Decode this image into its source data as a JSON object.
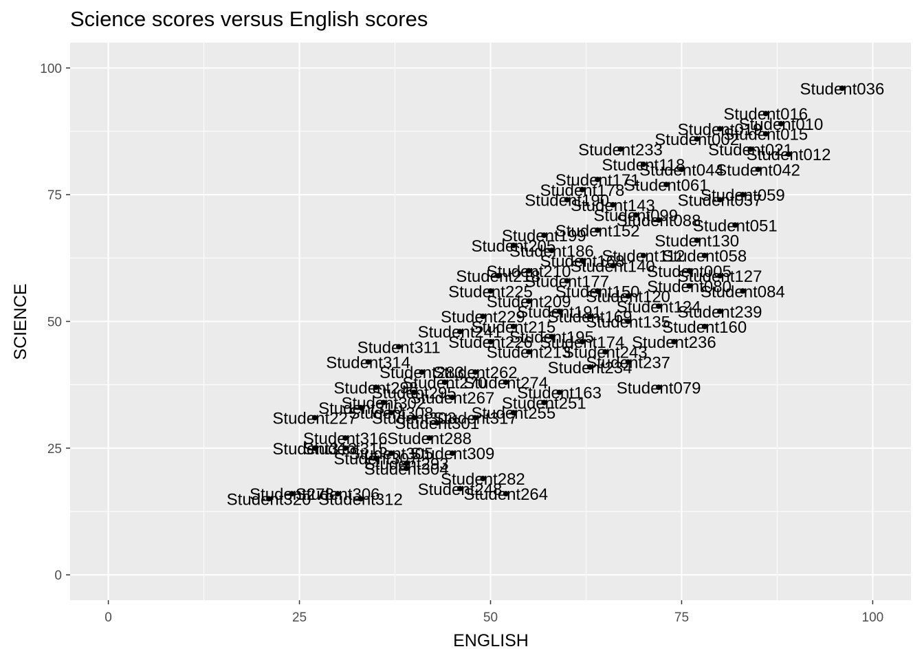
{
  "chart_data": {
    "type": "scatter",
    "title": "Science scores versus English scores",
    "xlabel": "ENGLISH",
    "ylabel": "SCIENCE",
    "xlim": [
      -5,
      105
    ],
    "ylim": [
      -5,
      105
    ],
    "xticks": [
      "0",
      "25",
      "50",
      "75",
      "100"
    ],
    "yticks": [
      "0",
      "25",
      "50",
      "75",
      "100"
    ],
    "grid": true,
    "points": [
      {
        "x": 96,
        "y": 96,
        "label": "Student036"
      },
      {
        "x": 88,
        "y": 89,
        "label": "Student010"
      },
      {
        "x": 86,
        "y": 91,
        "label": "Student016"
      },
      {
        "x": 86,
        "y": 87,
        "label": "Student015"
      },
      {
        "x": 89,
        "y": 83,
        "label": "Student012"
      },
      {
        "x": 85,
        "y": 80,
        "label": "Student042"
      },
      {
        "x": 83,
        "y": 75,
        "label": "Student059"
      },
      {
        "x": 80,
        "y": 74,
        "label": "Student037"
      },
      {
        "x": 82,
        "y": 69,
        "label": "Student051"
      },
      {
        "x": 77,
        "y": 66,
        "label": "Student130"
      },
      {
        "x": 78,
        "y": 63,
        "label": "Student058"
      },
      {
        "x": 76,
        "y": 60,
        "label": "Student005"
      },
      {
        "x": 80,
        "y": 59,
        "label": "Student127"
      },
      {
        "x": 76,
        "y": 57,
        "label": "Student080"
      },
      {
        "x": 83,
        "y": 56,
        "label": "Student084"
      },
      {
        "x": 72,
        "y": 53,
        "label": "Student124"
      },
      {
        "x": 80,
        "y": 52,
        "label": "Student239"
      },
      {
        "x": 78,
        "y": 49,
        "label": "Student160"
      },
      {
        "x": 74,
        "y": 46,
        "label": "Student236"
      },
      {
        "x": 68,
        "y": 42,
        "label": "Student237"
      },
      {
        "x": 63,
        "y": 41,
        "label": "Student234"
      },
      {
        "x": 72,
        "y": 37,
        "label": "Student079"
      },
      {
        "x": 59,
        "y": 36,
        "label": "Student163"
      },
      {
        "x": 57,
        "y": 34,
        "label": "Student251"
      },
      {
        "x": 53,
        "y": 32,
        "label": "Student255"
      },
      {
        "x": 38,
        "y": 45,
        "label": "Student311"
      },
      {
        "x": 34,
        "y": 42,
        "label": "Student314"
      },
      {
        "x": 27,
        "y": 31,
        "label": "Student227"
      },
      {
        "x": 43,
        "y": 30,
        "label": "Student301"
      },
      {
        "x": 48,
        "y": 31,
        "label": "Student317"
      },
      {
        "x": 42,
        "y": 27,
        "label": "Student288"
      },
      {
        "x": 31,
        "y": 27,
        "label": "Student316"
      },
      {
        "x": 27,
        "y": 25,
        "label": "Student313"
      },
      {
        "x": 45,
        "y": 24,
        "label": "Student309"
      },
      {
        "x": 39,
        "y": 22,
        "label": "Student293"
      },
      {
        "x": 35,
        "y": 23,
        "label": "Student307"
      },
      {
        "x": 39,
        "y": 21,
        "label": "Student304"
      },
      {
        "x": 49,
        "y": 19,
        "label": "Student282"
      },
      {
        "x": 46,
        "y": 17,
        "label": "Student248"
      },
      {
        "x": 52,
        "y": 16,
        "label": "Student264"
      },
      {
        "x": 30,
        "y": 16,
        "label": "Student306"
      },
      {
        "x": 24,
        "y": 16,
        "label": "Student278"
      },
      {
        "x": 21,
        "y": 15,
        "label": "Student320"
      },
      {
        "x": 33,
        "y": 15,
        "label": "Student312"
      },
      {
        "x": 67,
        "y": 84,
        "label": "Student233"
      },
      {
        "x": 70,
        "y": 81,
        "label": "Student118"
      },
      {
        "x": 77,
        "y": 86,
        "label": "Student002"
      },
      {
        "x": 80,
        "y": 88,
        "label": "Student019"
      },
      {
        "x": 84,
        "y": 84,
        "label": "Student021"
      },
      {
        "x": 75,
        "y": 80,
        "label": "Student044"
      },
      {
        "x": 73,
        "y": 77,
        "label": "Student061"
      },
      {
        "x": 64,
        "y": 78,
        "label": "Student171"
      },
      {
        "x": 62,
        "y": 76,
        "label": "Student178"
      },
      {
        "x": 60,
        "y": 74,
        "label": "Student190"
      },
      {
        "x": 66,
        "y": 73,
        "label": "Student143"
      },
      {
        "x": 69,
        "y": 71,
        "label": "Student099"
      },
      {
        "x": 72,
        "y": 70,
        "label": "Student088"
      },
      {
        "x": 64,
        "y": 68,
        "label": "Student152"
      },
      {
        "x": 57,
        "y": 67,
        "label": "Student199"
      },
      {
        "x": 53,
        "y": 65,
        "label": "Student205"
      },
      {
        "x": 58,
        "y": 64,
        "label": "Student186"
      },
      {
        "x": 62,
        "y": 62,
        "label": "Student168"
      },
      {
        "x": 66,
        "y": 61,
        "label": "Student140"
      },
      {
        "x": 70,
        "y": 63,
        "label": "Student112"
      },
      {
        "x": 55,
        "y": 60,
        "label": "Student210"
      },
      {
        "x": 51,
        "y": 59,
        "label": "Student218"
      },
      {
        "x": 60,
        "y": 58,
        "label": "Student177"
      },
      {
        "x": 64,
        "y": 56,
        "label": "Student150"
      },
      {
        "x": 68,
        "y": 55,
        "label": "Student120"
      },
      {
        "x": 50,
        "y": 56,
        "label": "Student225"
      },
      {
        "x": 55,
        "y": 54,
        "label": "Student209"
      },
      {
        "x": 59,
        "y": 52,
        "label": "Student191"
      },
      {
        "x": 63,
        "y": 51,
        "label": "Student169"
      },
      {
        "x": 68,
        "y": 50,
        "label": "Student135"
      },
      {
        "x": 49,
        "y": 51,
        "label": "Student229"
      },
      {
        "x": 53,
        "y": 49,
        "label": "Student215"
      },
      {
        "x": 58,
        "y": 47,
        "label": "Student195"
      },
      {
        "x": 62,
        "y": 46,
        "label": "Student174"
      },
      {
        "x": 46,
        "y": 48,
        "label": "Student241"
      },
      {
        "x": 50,
        "y": 46,
        "label": "Student226"
      },
      {
        "x": 55,
        "y": 44,
        "label": "Student213"
      },
      {
        "x": 65,
        "y": 44,
        "label": "Student243"
      },
      {
        "x": 48,
        "y": 40,
        "label": "Student262"
      },
      {
        "x": 52,
        "y": 38,
        "label": "Student274"
      },
      {
        "x": 41,
        "y": 40,
        "label": "Student283"
      },
      {
        "x": 44,
        "y": 38,
        "label": "Student270"
      },
      {
        "x": 40,
        "y": 36,
        "label": "Student295"
      },
      {
        "x": 35,
        "y": 37,
        "label": "Student298"
      },
      {
        "x": 36,
        "y": 34,
        "label": "Student302"
      },
      {
        "x": 45,
        "y": 35,
        "label": "Student267"
      },
      {
        "x": 37,
        "y": 32,
        "label": "Student308"
      },
      {
        "x": 33,
        "y": 33,
        "label": "Student310"
      },
      {
        "x": 40,
        "y": 31,
        "label": "Student303"
      },
      {
        "x": 31,
        "y": 25,
        "label": "Student315"
      },
      {
        "x": 37,
        "y": 24,
        "label": "Student305"
      }
    ]
  }
}
